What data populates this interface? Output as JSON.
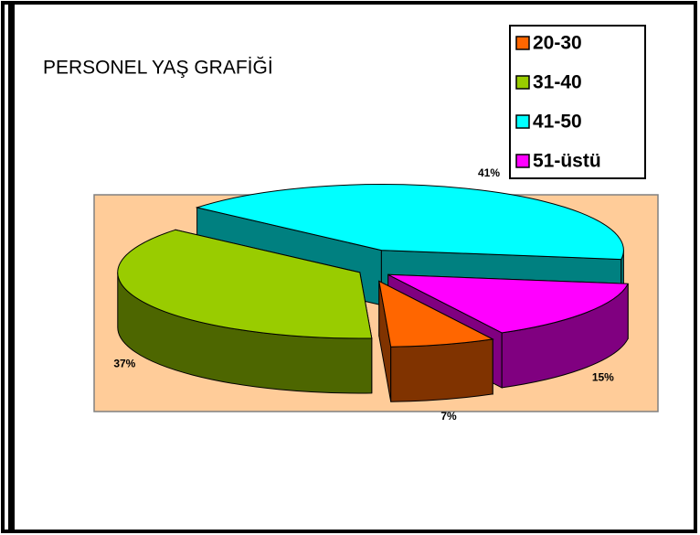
{
  "chart_data": {
    "type": "pie3d",
    "title": "PERSONEL YAŞ GRAFİĞİ",
    "categories": [
      "20-30",
      "31-40",
      "41-50",
      "51-üstü"
    ],
    "values": [
      7,
      37,
      41,
      15
    ],
    "value_labels": [
      "7%",
      "37%",
      "41%",
      "15%"
    ],
    "colors": [
      "#ff6600",
      "#99cc00",
      "#00ffff",
      "#ff00ff"
    ],
    "legend": "top-right"
  }
}
